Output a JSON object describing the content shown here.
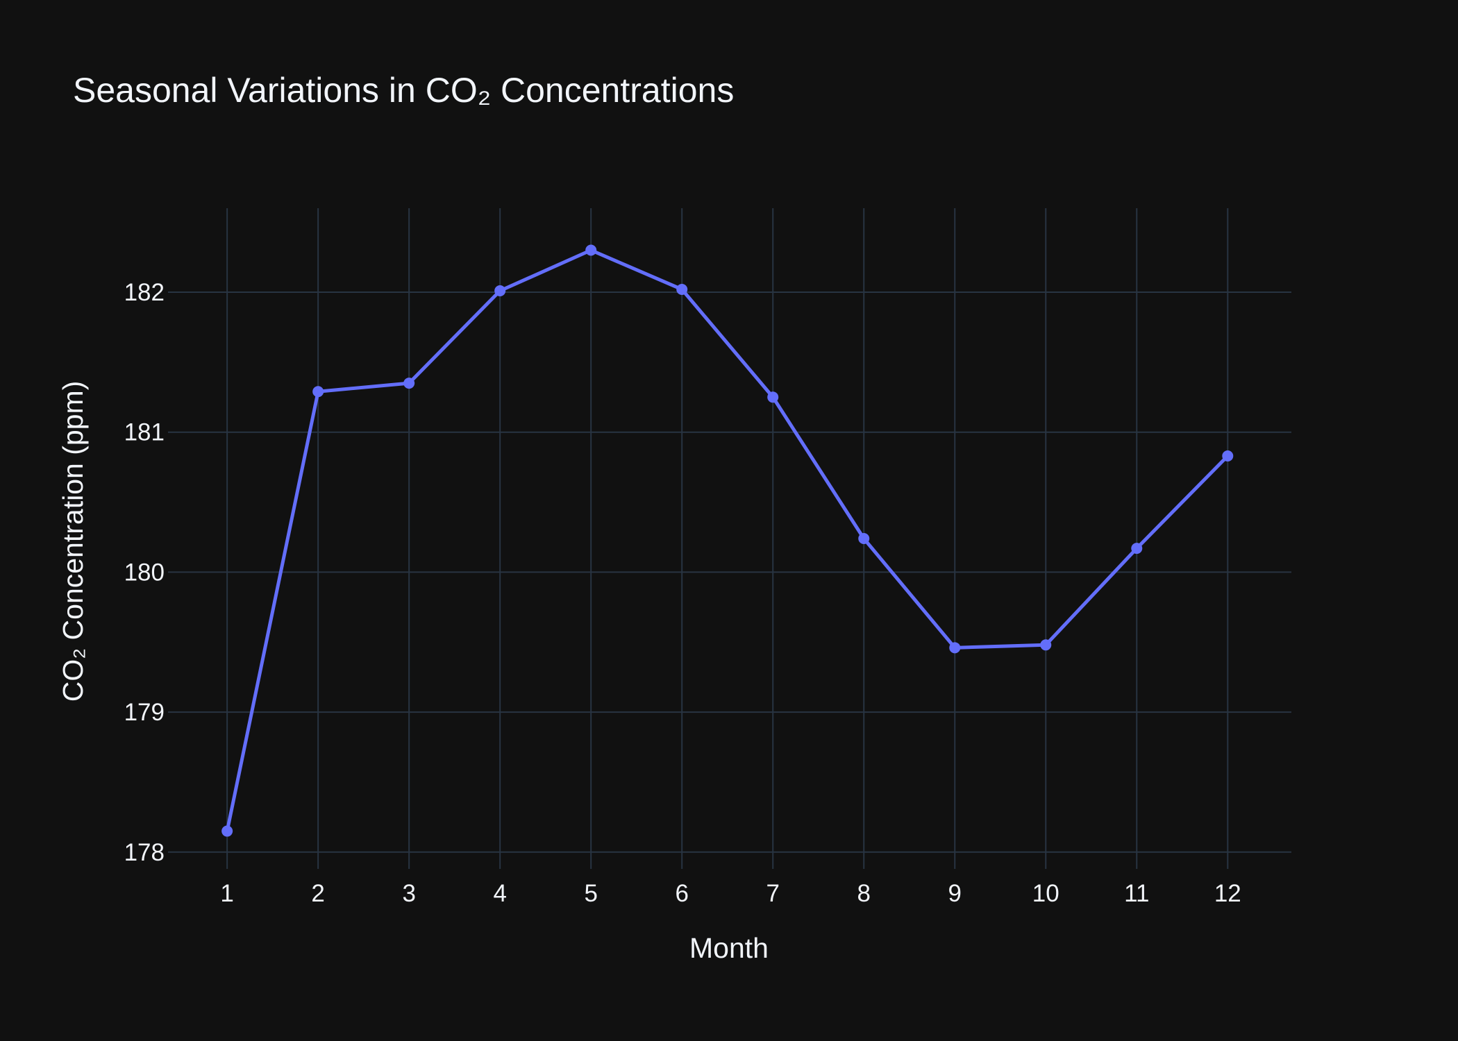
{
  "chart_data": {
    "type": "line",
    "title": "Seasonal Variations in CO₂ Concentrations",
    "xlabel": "Month",
    "ylabel": "CO₂ Concentration (ppm)",
    "x": [
      1,
      2,
      3,
      4,
      5,
      6,
      7,
      8,
      9,
      10,
      11,
      12
    ],
    "series": [
      {
        "values": [
          178.15,
          181.29,
          181.35,
          182.01,
          182.3,
          182.02,
          181.25,
          180.24,
          179.46,
          179.48,
          180.17,
          180.83
        ]
      }
    ],
    "xticks": [
      "1",
      "2",
      "3",
      "4",
      "5",
      "6",
      "7",
      "8",
      "9",
      "10",
      "11",
      "12"
    ],
    "yticks": [
      "178",
      "179",
      "180",
      "181",
      "182"
    ],
    "xlim": [
      0.35,
      12.7
    ],
    "ylim": [
      177.88,
      182.6
    ],
    "grid": true,
    "colors": {
      "background": "#111111",
      "grid": "#283442",
      "line": "#636efa",
      "text": "#f2f5fa"
    }
  }
}
